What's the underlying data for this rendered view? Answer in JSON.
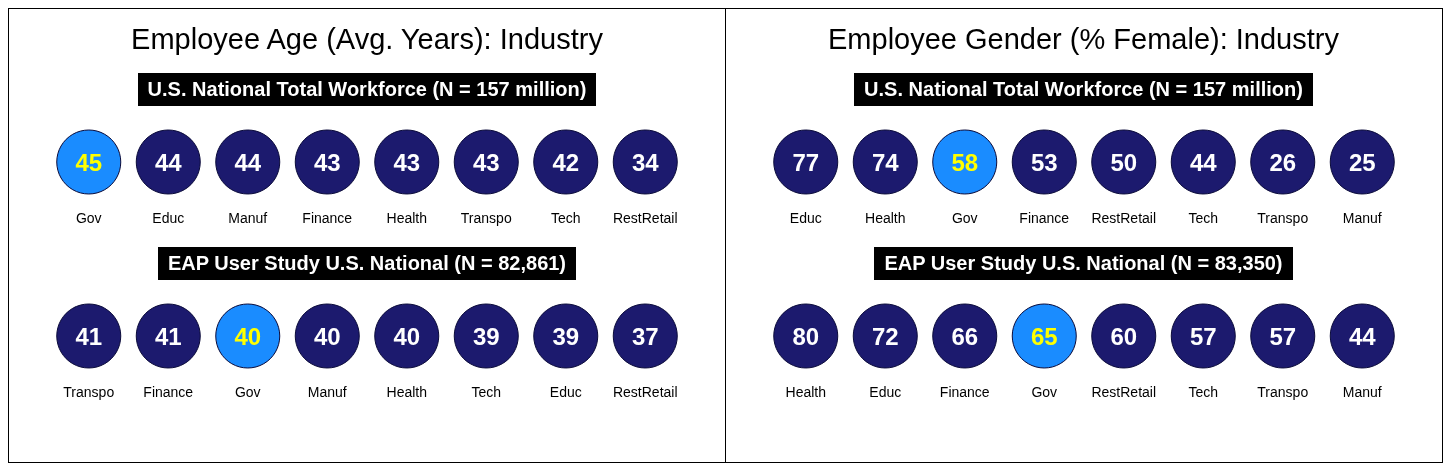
{
  "chart_data": [
    {
      "type": "other",
      "title": "Employee Age (Avg. Years): Industry",
      "subtitle": "U.S. National Total Workforce (N = 157 million)",
      "categories": [
        "Gov",
        "Educ",
        "Manuf",
        "Finance",
        "Health",
        "Transpo",
        "Tech",
        "RestRetail"
      ],
      "values": [
        45,
        44,
        44,
        43,
        43,
        43,
        42,
        34
      ],
      "colors": [
        "#1a8cff",
        "#1c1a6e",
        "#1c1a6e",
        "#1c1a6e",
        "#1c1a6e",
        "#1c1a6e",
        "#1c1a6e",
        "#1c1a6e"
      ],
      "data_labels": true
    },
    {
      "type": "other",
      "subtitle": "EAP User Study U.S. National (N = 82,861)",
      "categories": [
        "Transpo",
        "Finance",
        "Gov",
        "Manuf",
        "Health",
        "Tech",
        "Educ",
        "RestRetail"
      ],
      "values": [
        41,
        41,
        40,
        40,
        40,
        39,
        39,
        37
      ],
      "colors": [
        "#1c1a6e",
        "#1c1a6e",
        "#1a8cff",
        "#1c1a6e",
        "#1c1a6e",
        "#1c1a6e",
        "#1c1a6e",
        "#1c1a6e"
      ],
      "data_labels": true
    },
    {
      "type": "other",
      "title": "Employee Gender (% Female): Industry",
      "subtitle": "U.S. National Total Workforce (N = 157 million)",
      "categories": [
        "Educ",
        "Health",
        "Gov",
        "Finance",
        "RestRetail",
        "Tech",
        "Transpo",
        "Manuf"
      ],
      "values": [
        77,
        74,
        58,
        53,
        50,
        44,
        26,
        25
      ],
      "colors": [
        "#1c1a6e",
        "#1c1a6e",
        "#1a8cff",
        "#1c1a6e",
        "#1c1a6e",
        "#1c1a6e",
        "#1c1a6e",
        "#1c1a6e"
      ],
      "data_labels": true
    },
    {
      "type": "other",
      "subtitle": "EAP User Study U.S. National (N = 83,350)",
      "categories": [
        "Health",
        "Educ",
        "Finance",
        "Gov",
        "RestRetail",
        "Tech",
        "Transpo",
        "Manuf"
      ],
      "values": [
        80,
        72,
        66,
        65,
        60,
        57,
        57,
        44
      ],
      "colors": [
        "#1c1a6e",
        "#1c1a6e",
        "#1c1a6e",
        "#1a8cff",
        "#1c1a6e",
        "#1c1a6e",
        "#1c1a6e",
        "#1c1a6e"
      ],
      "data_labels": true
    }
  ]
}
